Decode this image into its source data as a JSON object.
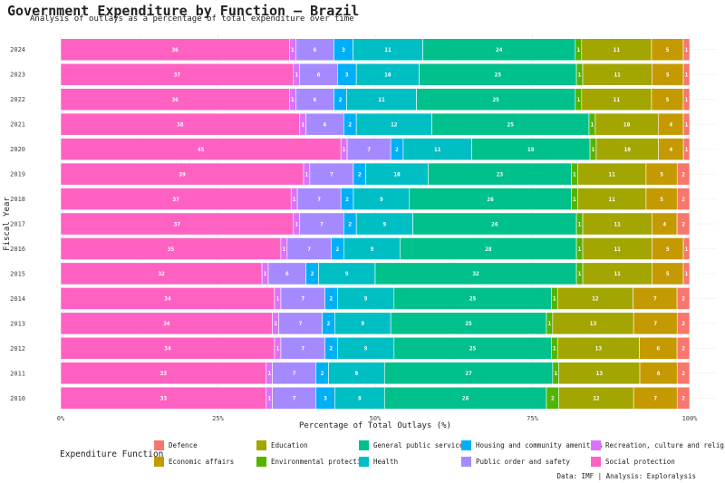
{
  "chart_data": {
    "type": "bar",
    "orientation": "horizontal",
    "stacked": true,
    "title": "Government Expenditure by Function — Brazil",
    "subtitle": "Analysis of outlays as a percentage of total expenditure over time",
    "xlabel": "Percentage of Total Outlays (%)",
    "ylabel": "Fiscal Year",
    "xlim": [
      0,
      100
    ],
    "x_ticks": [
      "0%",
      "25%",
      "50%",
      "75%",
      "100%"
    ],
    "grid": true,
    "legend_title": "Expenditure Function",
    "legend_position": "bottom",
    "caption": "Data: IMF | Analysis: Exploralysis",
    "categories": [
      "2024",
      "2023",
      "2022",
      "2021",
      "2020",
      "2019",
      "2018",
      "2017",
      "2016",
      "2015",
      "2014",
      "2013",
      "2012",
      "2011",
      "2010"
    ],
    "series": [
      {
        "name": "Social protection",
        "color": "#FF61C3",
        "values": [
          36,
          37,
          36,
          38,
          45,
          39,
          37,
          37,
          35,
          32,
          34,
          34,
          34,
          33,
          33
        ]
      },
      {
        "name": "Recreation, culture and religion",
        "color": "#DB72FB",
        "values": [
          1,
          1,
          1,
          1,
          1,
          1,
          1,
          1,
          1,
          1,
          1,
          1,
          1,
          1,
          1
        ]
      },
      {
        "name": "Public order and safety",
        "color": "#A58AFF",
        "values": [
          6,
          6,
          6,
          6,
          7,
          7,
          7,
          7,
          7,
          6,
          7,
          7,
          7,
          7,
          7
        ]
      },
      {
        "name": "Housing and community amenities",
        "color": "#00B0F6",
        "values": [
          3,
          3,
          2,
          2,
          2,
          2,
          2,
          2,
          2,
          2,
          2,
          2,
          2,
          2,
          3
        ]
      },
      {
        "name": "Health",
        "color": "#00BFC4",
        "values": [
          11,
          10,
          11,
          12,
          11,
          10,
          9,
          9,
          9,
          9,
          9,
          9,
          9,
          9,
          8
        ]
      },
      {
        "name": "General public services",
        "color": "#00C08B",
        "values": [
          24,
          25,
          25,
          25,
          19,
          23,
          26,
          26,
          28,
          32,
          25,
          25,
          25,
          27,
          26
        ]
      },
      {
        "name": "Environmental protection",
        "color": "#53B400",
        "values": [
          1,
          1,
          1,
          1,
          1,
          1,
          1,
          1,
          1,
          1,
          1,
          1,
          1,
          1,
          2
        ]
      },
      {
        "name": "Education",
        "color": "#A3A500",
        "values": [
          11,
          11,
          11,
          10,
          10,
          11,
          11,
          11,
          11,
          11,
          12,
          13,
          13,
          13,
          12
        ]
      },
      {
        "name": "Economic affairs",
        "color": "#C49A00",
        "values": [
          5,
          5,
          5,
          4,
          4,
          5,
          5,
          4,
          5,
          5,
          7,
          7,
          6,
          6,
          7
        ]
      },
      {
        "name": "Defence",
        "color": "#F8766D",
        "values": [
          1,
          1,
          1,
          1,
          1,
          2,
          2,
          2,
          1,
          1,
          2,
          2,
          2,
          2,
          2
        ]
      }
    ],
    "legend_order": [
      "Defence",
      "Education",
      "General public services",
      "Housing and community amenities",
      "Recreation, culture and religion",
      "Economic affairs",
      "Environmental protection",
      "Health",
      "Public order and safety",
      "Social protection"
    ]
  }
}
